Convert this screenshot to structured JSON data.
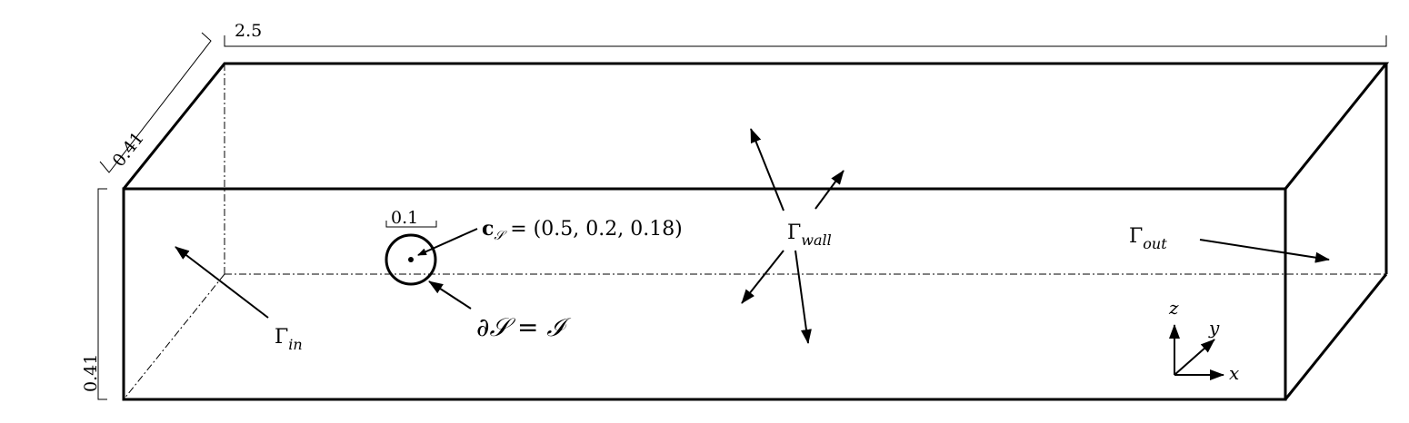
{
  "dimensions": {
    "length": "2.5",
    "width": "0.41",
    "height": "0.41",
    "diameter": "0.1"
  },
  "labels": {
    "gamma_in": {
      "symbol": "Γ",
      "sub": "in"
    },
    "gamma_wall": {
      "symbol": "Γ",
      "sub": "wall"
    },
    "gamma_out": {
      "symbol": "Γ",
      "sub": "out"
    },
    "center": {
      "c": "c",
      "sub": "𝒮",
      "value": " = (0.5, 0.2, 0.18)"
    },
    "interface": "∂𝒮 = ℐ"
  },
  "axes": {
    "x": "x",
    "y": "y",
    "z": "z"
  }
}
